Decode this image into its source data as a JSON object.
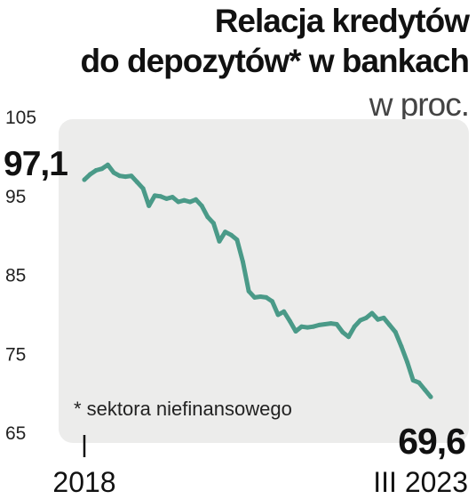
{
  "chart_data": {
    "type": "line",
    "title": "Relacja kredytów",
    "title_line2": "do depozytów* w bankach",
    "subtitle": "w proc.",
    "footnote": "* sektora niefinansowego",
    "ylim": [
      65,
      105
    ],
    "yticks": [
      "105",
      "95",
      "85",
      "75",
      "65"
    ],
    "x_start_label": "2018",
    "x_end_label": "III 2023",
    "first_value_label": "97,1",
    "last_value_label": "69,6",
    "grid": false,
    "colors": {
      "line": "#4a9a88",
      "panel": "#ececeb",
      "text": "#111111"
    },
    "series": [
      {
        "values": [
          97.1,
          97.8,
          98.3,
          98.5,
          99.0,
          98.0,
          97.6,
          97.5,
          97.6,
          96.8,
          96.0,
          93.8,
          95.1,
          95.0,
          94.7,
          94.9,
          94.3,
          94.5,
          94.3,
          94.6,
          93.8,
          92.4,
          91.6,
          89.3,
          90.5,
          90.1,
          89.5,
          86.7,
          83.0,
          82.2,
          82.3,
          82.2,
          81.7,
          80.0,
          80.4,
          79.2,
          77.9,
          78.5,
          78.4,
          78.5,
          78.7,
          78.8,
          78.9,
          78.8,
          77.8,
          77.2,
          78.5,
          79.3,
          79.6,
          80.2,
          79.4,
          79.6,
          78.7,
          77.8,
          76.0,
          74.0,
          71.7,
          71.4,
          70.5,
          69.6
        ]
      }
    ]
  }
}
